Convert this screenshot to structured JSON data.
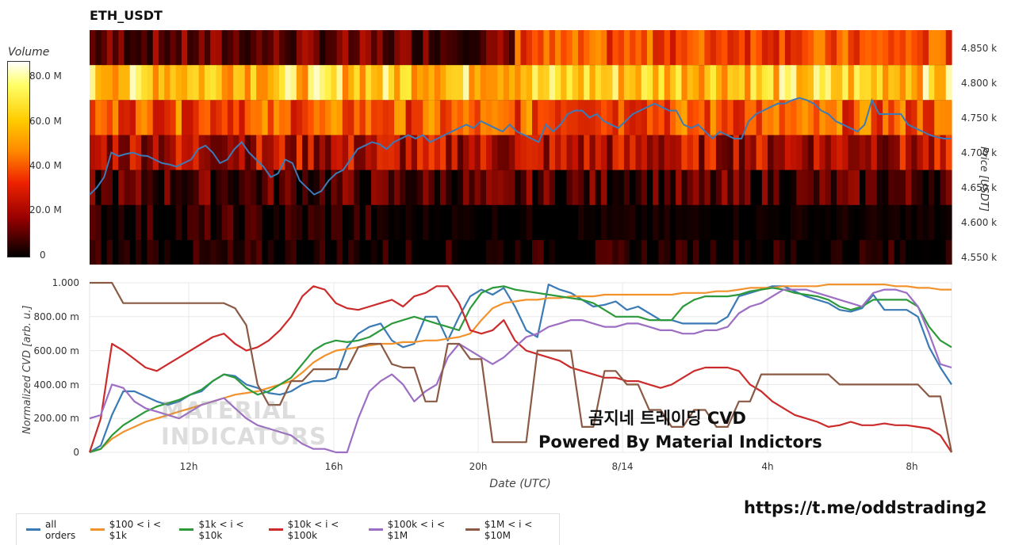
{
  "chart_title": "ETH_USDT",
  "url_text": "https://t.me/oddstrading2",
  "annotation_line1": "곰지네 트레이딩 CVD",
  "annotation_line2": "Powered By Material Indictors",
  "watermark_line1": "MATERIAL",
  "watermark_line2": "INDICATORS",
  "chart_data": [
    {
      "type": "heatmap",
      "title": "ETH_USDT",
      "colorbar_title": "Volume",
      "colorbar_ticks": [
        "80.0 M",
        "60.0 M",
        "40.0 M",
        "20.0 M",
        "0"
      ],
      "colorbar_range": [
        0,
        90
      ],
      "ylabel": "Price [USDT]",
      "y_ticks": [
        "4.850 k",
        "4.800 k",
        "4.750 k",
        "4.700 k",
        "4.650 k",
        "4.600 k",
        "4.550 k"
      ],
      "ylim": [
        4540,
        4875
      ],
      "price_bands": [
        {
          "low": 4825,
          "high": 4875,
          "level": 0.32
        },
        {
          "low": 4775,
          "high": 4825,
          "level": 0.8
        },
        {
          "low": 4725,
          "high": 4775,
          "level": 0.55
        },
        {
          "low": 4675,
          "high": 4725,
          "level": 0.35
        },
        {
          "low": 4625,
          "high": 4675,
          "level": 0.15
        },
        {
          "low": 4575,
          "high": 4625,
          "level": 0.06
        },
        {
          "low": 4540,
          "high": 4575,
          "level": 0.03
        }
      ],
      "price_line_color": "#3d7ab8",
      "price_series": [
        4640,
        4650,
        4665,
        4700,
        4695,
        4698,
        4700,
        4696,
        4695,
        4690,
        4685,
        4683,
        4680,
        4685,
        4690,
        4705,
        4710,
        4700,
        4685,
        4690,
        4705,
        4715,
        4700,
        4690,
        4680,
        4665,
        4670,
        4690,
        4685,
        4660,
        4650,
        4640,
        4645,
        4660,
        4670,
        4675,
        4690,
        4705,
        4710,
        4715,
        4712,
        4705,
        4715,
        4720,
        4725,
        4720,
        4725,
        4715,
        4720,
        4725,
        4730,
        4735,
        4740,
        4735,
        4745,
        4740,
        4735,
        4730,
        4740,
        4730,
        4725,
        4720,
        4715,
        4740,
        4730,
        4740,
        4755,
        4760,
        4760,
        4750,
        4755,
        4745,
        4740,
        4735,
        4745,
        4755,
        4760,
        4765,
        4770,
        4765,
        4760,
        4760,
        4740,
        4735,
        4740,
        4730,
        4720,
        4730,
        4725,
        4720,
        4720,
        4745,
        4755,
        4760,
        4765,
        4770,
        4770,
        4775,
        4778,
        4775,
        4770,
        4760,
        4755,
        4745,
        4740,
        4735,
        4730,
        4740,
        4775,
        4755,
        4755,
        4755,
        4755,
        4740,
        4735,
        4730,
        4725,
        4722,
        4720,
        4720
      ],
      "time_ticks": [
        "12h",
        "16h",
        "20h",
        "8/14",
        "4h",
        "8h"
      ]
    },
    {
      "type": "line",
      "xlabel": "Date (UTC)",
      "ylabel": "Normalized CVD [arb. u.]",
      "y_ticks": [
        "0",
        "200.00 m",
        "400.00 m",
        "600.00 m",
        "800.00 m",
        "1.000"
      ],
      "ylim": [
        0,
        1
      ],
      "x_ticks": [
        "12h",
        "16h",
        "20h",
        "8/14",
        "4h",
        "8h"
      ],
      "grid": true,
      "legend_position": "bottom-left",
      "series": [
        {
          "name": "all orders",
          "color": "#3a7bb5",
          "values": [
            0.0,
            0.04,
            0.22,
            0.36,
            0.36,
            0.33,
            0.3,
            0.28,
            0.3,
            0.34,
            0.36,
            0.42,
            0.46,
            0.45,
            0.4,
            0.38,
            0.35,
            0.34,
            0.36,
            0.4,
            0.42,
            0.42,
            0.44,
            0.62,
            0.7,
            0.74,
            0.76,
            0.66,
            0.62,
            0.64,
            0.8,
            0.8,
            0.66,
            0.8,
            0.92,
            0.96,
            0.93,
            0.97,
            0.86,
            0.72,
            0.68,
            0.99,
            0.96,
            0.94,
            0.9,
            0.86,
            0.87,
            0.89,
            0.84,
            0.86,
            0.82,
            0.78,
            0.78,
            0.76,
            0.76,
            0.76,
            0.76,
            0.8,
            0.92,
            0.94,
            0.96,
            0.98,
            0.98,
            0.95,
            0.92,
            0.9,
            0.88,
            0.84,
            0.83,
            0.85,
            0.93,
            0.84,
            0.84,
            0.84,
            0.8,
            0.62,
            0.5,
            0.4
          ]
        },
        {
          "name": "$100 < i < $1k",
          "color": "#f2922c",
          "values": [
            0.0,
            0.02,
            0.08,
            0.12,
            0.15,
            0.18,
            0.2,
            0.22,
            0.24,
            0.26,
            0.28,
            0.3,
            0.32,
            0.34,
            0.35,
            0.36,
            0.38,
            0.4,
            0.42,
            0.47,
            0.53,
            0.57,
            0.6,
            0.61,
            0.62,
            0.63,
            0.64,
            0.64,
            0.65,
            0.65,
            0.66,
            0.66,
            0.67,
            0.68,
            0.7,
            0.78,
            0.85,
            0.88,
            0.89,
            0.9,
            0.9,
            0.91,
            0.91,
            0.92,
            0.92,
            0.92,
            0.93,
            0.93,
            0.93,
            0.93,
            0.93,
            0.93,
            0.93,
            0.94,
            0.94,
            0.94,
            0.95,
            0.95,
            0.96,
            0.97,
            0.97,
            0.97,
            0.98,
            0.98,
            0.98,
            0.98,
            0.99,
            0.99,
            0.99,
            0.99,
            0.99,
            0.99,
            0.98,
            0.98,
            0.97,
            0.97,
            0.96,
            0.96
          ]
        },
        {
          "name": "$1k < i < $10k",
          "color": "#2c9a3b",
          "values": [
            0.0,
            0.02,
            0.1,
            0.16,
            0.2,
            0.24,
            0.27,
            0.29,
            0.31,
            0.34,
            0.37,
            0.42,
            0.46,
            0.44,
            0.38,
            0.34,
            0.36,
            0.4,
            0.44,
            0.52,
            0.6,
            0.64,
            0.66,
            0.65,
            0.66,
            0.68,
            0.72,
            0.76,
            0.78,
            0.8,
            0.78,
            0.76,
            0.74,
            0.72,
            0.85,
            0.94,
            0.97,
            0.98,
            0.96,
            0.95,
            0.94,
            0.93,
            0.92,
            0.91,
            0.9,
            0.88,
            0.84,
            0.8,
            0.8,
            0.8,
            0.78,
            0.78,
            0.78,
            0.86,
            0.9,
            0.92,
            0.92,
            0.92,
            0.93,
            0.95,
            0.96,
            0.97,
            0.96,
            0.94,
            0.93,
            0.92,
            0.9,
            0.86,
            0.84,
            0.86,
            0.9,
            0.9,
            0.9,
            0.9,
            0.86,
            0.74,
            0.66,
            0.62
          ]
        },
        {
          "name": "$10k < i < $100k",
          "color": "#cc2b2b",
          "values": [
            0.0,
            0.2,
            0.64,
            0.6,
            0.55,
            0.5,
            0.48,
            0.52,
            0.56,
            0.6,
            0.64,
            0.68,
            0.7,
            0.64,
            0.6,
            0.62,
            0.66,
            0.72,
            0.8,
            0.92,
            0.98,
            0.96,
            0.88,
            0.85,
            0.84,
            0.86,
            0.88,
            0.9,
            0.86,
            0.92,
            0.94,
            0.98,
            0.98,
            0.88,
            0.72,
            0.7,
            0.72,
            0.78,
            0.66,
            0.6,
            0.58,
            0.56,
            0.54,
            0.5,
            0.48,
            0.46,
            0.44,
            0.44,
            0.42,
            0.42,
            0.4,
            0.38,
            0.4,
            0.44,
            0.48,
            0.5,
            0.5,
            0.5,
            0.48,
            0.4,
            0.36,
            0.3,
            0.26,
            0.22,
            0.2,
            0.18,
            0.15,
            0.16,
            0.18,
            0.16,
            0.16,
            0.17,
            0.16,
            0.16,
            0.15,
            0.14,
            0.1,
            0.0
          ]
        },
        {
          "name": "$100k < i < $1M",
          "color": "#9d6fc4",
          "values": [
            0.2,
            0.22,
            0.4,
            0.38,
            0.3,
            0.26,
            0.24,
            0.22,
            0.2,
            0.24,
            0.28,
            0.3,
            0.32,
            0.26,
            0.2,
            0.16,
            0.14,
            0.12,
            0.1,
            0.05,
            0.02,
            0.02,
            0.0,
            0.0,
            0.2,
            0.36,
            0.42,
            0.46,
            0.4,
            0.3,
            0.36,
            0.4,
            0.56,
            0.64,
            0.6,
            0.56,
            0.52,
            0.56,
            0.62,
            0.68,
            0.7,
            0.74,
            0.76,
            0.78,
            0.78,
            0.76,
            0.74,
            0.74,
            0.76,
            0.76,
            0.74,
            0.72,
            0.72,
            0.7,
            0.7,
            0.72,
            0.72,
            0.74,
            0.82,
            0.86,
            0.88,
            0.92,
            0.96,
            0.96,
            0.96,
            0.94,
            0.92,
            0.9,
            0.88,
            0.86,
            0.94,
            0.96,
            0.96,
            0.94,
            0.86,
            0.7,
            0.52,
            0.5
          ]
        },
        {
          "name": "$1M < i < $10M",
          "color": "#8b5a44",
          "values": [
            1.0,
            1.0,
            1.0,
            0.88,
            0.88,
            0.88,
            0.88,
            0.88,
            0.88,
            0.88,
            0.88,
            0.88,
            0.88,
            0.85,
            0.75,
            0.4,
            0.28,
            0.28,
            0.42,
            0.42,
            0.49,
            0.49,
            0.49,
            0.49,
            0.62,
            0.64,
            0.64,
            0.52,
            0.5,
            0.5,
            0.3,
            0.3,
            0.64,
            0.64,
            0.55,
            0.55,
            0.06,
            0.06,
            0.06,
            0.06,
            0.6,
            0.6,
            0.6,
            0.6,
            0.15,
            0.15,
            0.48,
            0.48,
            0.4,
            0.4,
            0.25,
            0.25,
            0.15,
            0.15,
            0.25,
            0.25,
            0.15,
            0.15,
            0.3,
            0.3,
            0.46,
            0.46,
            0.46,
            0.46,
            0.46,
            0.46,
            0.46,
            0.4,
            0.4,
            0.4,
            0.4,
            0.4,
            0.4,
            0.4,
            0.4,
            0.33,
            0.33,
            0.0
          ]
        }
      ]
    }
  ]
}
